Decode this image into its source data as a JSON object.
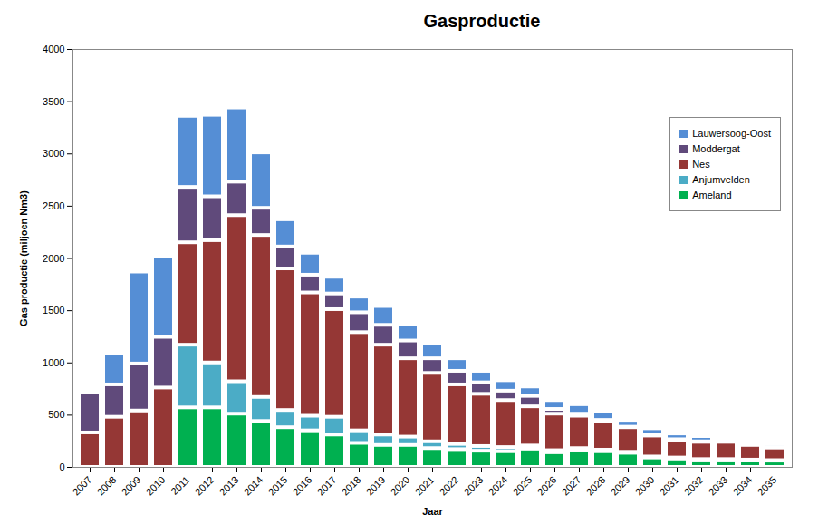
{
  "chart_data": {
    "type": "bar",
    "title": "Gasproductie",
    "x_label": "Jaar",
    "y_label": "Gas productie (miljoen Nm3)",
    "categories": [
      "2007",
      "2008",
      "2009",
      "2010",
      "2011",
      "2012",
      "2013",
      "2014",
      "2015",
      "2016",
      "2017",
      "2018",
      "2019",
      "2020",
      "2021",
      "2022",
      "2023",
      "2024",
      "2025",
      "2026",
      "2027",
      "2028",
      "2029",
      "2030",
      "2031",
      "2032",
      "2033",
      "2034",
      "2035"
    ],
    "series": [
      {
        "name": "Ameland",
        "color": "#00B050",
        "values": [
          0,
          0,
          0,
          0,
          570,
          570,
          510,
          440,
          380,
          350,
          310,
          230,
          210,
          210,
          180,
          170,
          155,
          150,
          175,
          140,
          165,
          150,
          135,
          90,
          80,
          70,
          70,
          65,
          60
        ]
      },
      {
        "name": "Anjumvelden",
        "color": "#4BACC6",
        "values": [
          0,
          0,
          0,
          0,
          600,
          430,
          310,
          230,
          165,
          140,
          170,
          120,
          100,
          80,
          65,
          50,
          45,
          40,
          30,
          20,
          15,
          15,
          10,
          10,
          10,
          5,
          5,
          5,
          5
        ]
      },
      {
        "name": "Nes",
        "color": "#953735",
        "values": [
          330,
          480,
          540,
          760,
          980,
          1170,
          1590,
          1550,
          1355,
          1180,
          1030,
          940,
          860,
          750,
          655,
          570,
          500,
          450,
          375,
          350,
          310,
          275,
          235,
          200,
          170,
          165,
          165,
          140,
          120
        ]
      },
      {
        "name": "Moddergat",
        "color": "#604A7B",
        "values": [
          390,
          310,
          450,
          485,
          530,
          420,
          320,
          260,
          210,
          170,
          150,
          190,
          190,
          170,
          140,
          130,
          110,
          90,
          100,
          45,
          20,
          10,
          5,
          5,
          5,
          5,
          5,
          5,
          5
        ]
      },
      {
        "name": "Lauwersoog-Oost",
        "color": "#558ED5",
        "values": [
          0,
          295,
          880,
          775,
          680,
          780,
          710,
          530,
          260,
          210,
          160,
          150,
          180,
          160,
          140,
          120,
          110,
          100,
          90,
          85,
          90,
          80,
          65,
          65,
          55,
          50,
          25,
          30,
          35
        ]
      }
    ],
    "stacked": true,
    "grid": false,
    "legend": "top-right",
    "ylim": [
      0,
      4000
    ],
    "yticks": [
      0,
      500,
      1000,
      1500,
      2000,
      2500,
      3000,
      3500,
      4000
    ]
  }
}
